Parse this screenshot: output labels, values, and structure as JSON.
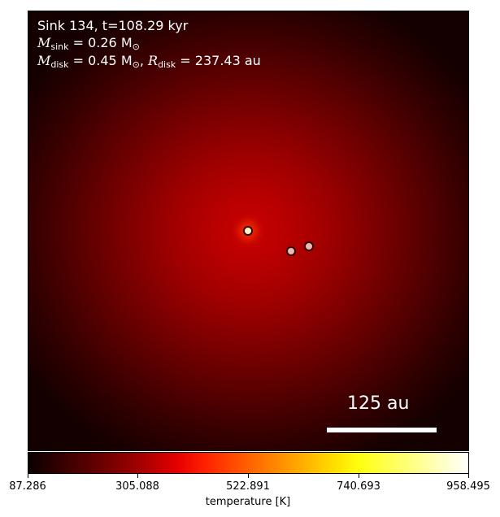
{
  "annotation": {
    "line1": "Sink 134, t=108.29 kyr",
    "msink_label": "M",
    "msink_sub": "sink",
    "msink_value": " = 0.26 M",
    "msink_unit_sub": "⊙",
    "mdisk_label": "M",
    "mdisk_sub": "disk",
    "mdisk_value": " = 0.45 M",
    "mdisk_unit_sub": "⊙",
    "rdisk_sep": ", ",
    "rdisk_label": "R",
    "rdisk_sub": "disk",
    "rdisk_value": " = 237.43 au"
  },
  "scalebar": {
    "label": "125 au"
  },
  "colorbar": {
    "label": "temperature [K]",
    "ticks": [
      "87.286",
      "305.088",
      "522.891",
      "740.693",
      "958.495"
    ],
    "colormap": "hot",
    "range": [
      87.286,
      958.495
    ]
  },
  "sinks": [
    {
      "name": "primary"
    },
    {
      "name": "companion-1"
    },
    {
      "name": "companion-2"
    }
  ],
  "colors": {
    "center": "#c80000",
    "edge": "#150000"
  }
}
